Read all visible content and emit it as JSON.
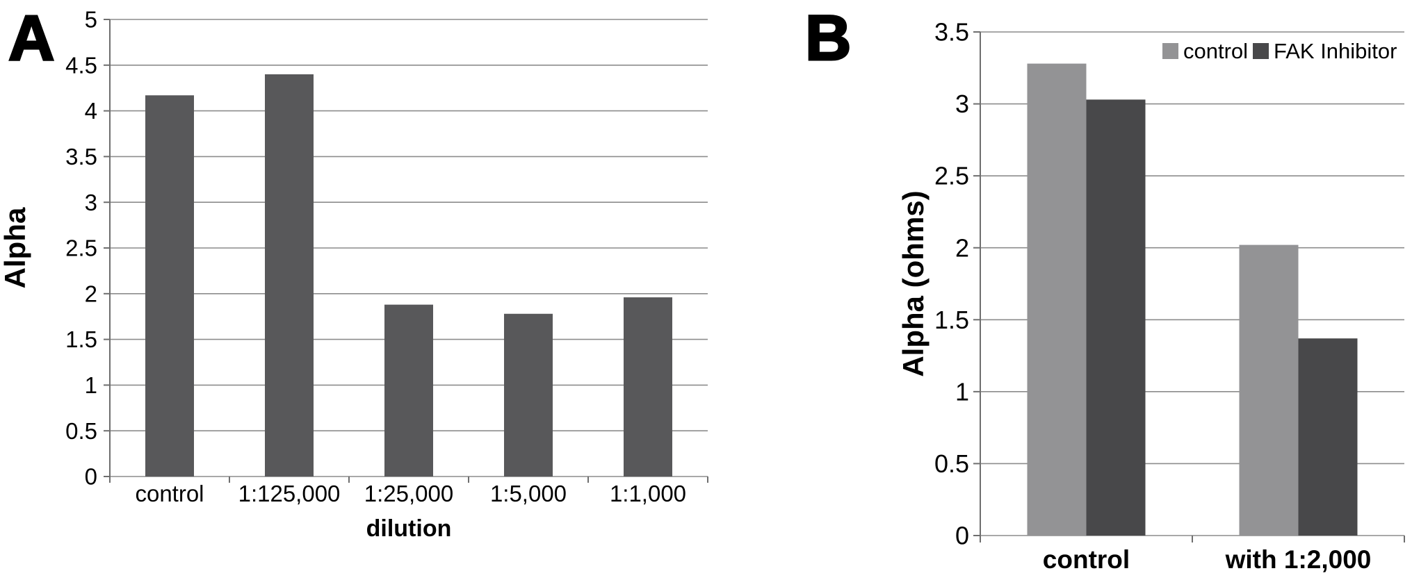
{
  "figure": {
    "background": "#ffffff",
    "text_color": "#000000",
    "gridline_color": "#8c8c8c",
    "axis_color": "#6e6e6e"
  },
  "chart_data": [
    {
      "type": "bar",
      "panel_label": "A",
      "title": "",
      "categories": [
        "control",
        "1:125,000",
        "1:25,000",
        "1:5,000",
        "1:1,000"
      ],
      "values": [
        4.17,
        4.4,
        1.88,
        1.78,
        1.96
      ],
      "xlabel": "dilution",
      "ylabel": "Alpha",
      "ylim": [
        0,
        5
      ],
      "ytick_step": 0.5,
      "ytick_labels": [
        "0",
        "0.5",
        "1",
        "1.5",
        "2",
        "2.5",
        "3",
        "3.5",
        "4",
        "4.5",
        "5"
      ],
      "grid": true,
      "legend": null,
      "bar_color": "#58585a"
    },
    {
      "type": "bar",
      "panel_label": "B",
      "title": "",
      "categories": [
        "control",
        "with 1:2,000"
      ],
      "series": [
        {
          "name": "control",
          "values": [
            3.28,
            2.02
          ],
          "color": "#939395"
        },
        {
          "name": "FAK Inhibitor",
          "values": [
            3.03,
            1.37
          ],
          "color": "#48484a"
        }
      ],
      "xlabel": "",
      "ylabel": "Alpha (ohms)",
      "ylim": [
        0,
        3.5
      ],
      "ytick_step": 0.5,
      "ytick_labels": [
        "0",
        "0.5",
        "1",
        "1.5",
        "2",
        "2.5",
        "3",
        "3.5"
      ],
      "grid": true,
      "legend_position": "top-right"
    }
  ]
}
